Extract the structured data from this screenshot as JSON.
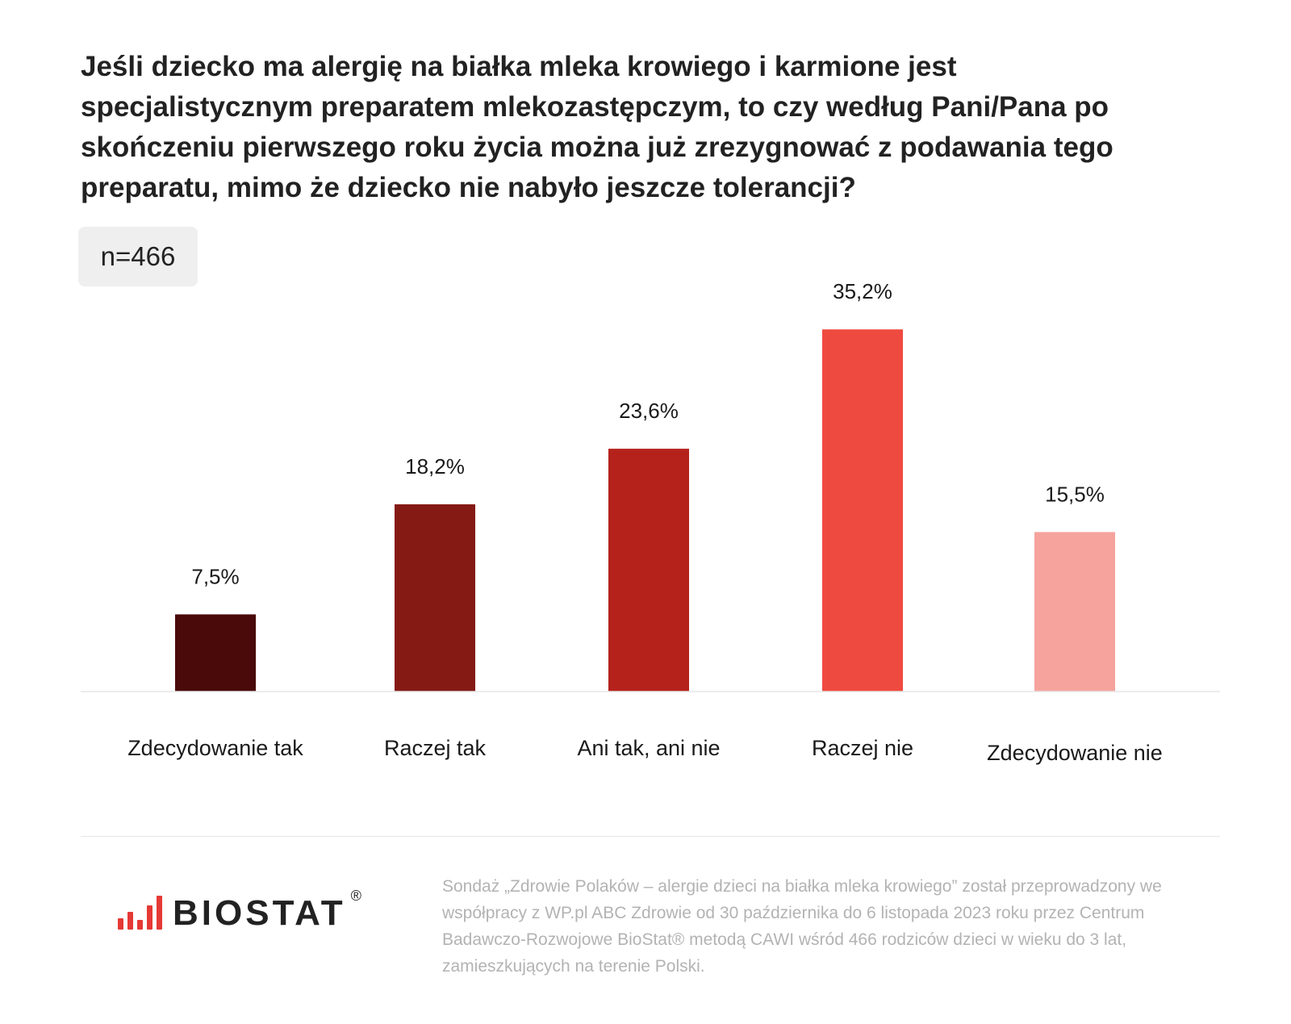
{
  "title": "Jeśli dziecko ma alergię na białka mleka krowiego i karmione jest specjalistycznym preparatem mlekozastępczym, to czy według Pani/Pana po skończeniu pierwszego roku życia można już zrezygnować z podawania tego preparatu, mimo że dziecko nie nabyło jeszcze tolerancji?",
  "sample_size": "n=466",
  "chart_data": {
    "type": "bar",
    "categories": [
      "Zdecydowanie tak",
      "Raczej tak",
      "Ani tak, ani nie",
      "Raczej nie",
      "Zdecydowanie nie"
    ],
    "values": [
      7.5,
      18.2,
      23.6,
      35.2,
      15.5
    ],
    "value_labels": [
      "7,5%",
      "18,2%",
      "23,6%",
      "35,2%",
      "15,5%"
    ],
    "colors": [
      "#4a0a0a",
      "#851a15",
      "#b5221c",
      "#ef4a40",
      "#f5a39c"
    ],
    "xlabel": "",
    "ylabel": "",
    "grid": false
  },
  "logo": {
    "text": "BIOSTAT",
    "registered": "®",
    "color": "#e53935"
  },
  "footnote": "Sondaż „Zdrowie Polaków – alergie dzieci na białka mleka krowiego” został przeprowadzony we współpracy z WP.pl ABC Zdrowie od 30 października do 6 listopada 2023 roku przez Centrum Badawczo-Rozwojowe BioStat® metodą CAWI wśród 466 rodziców dzieci w wieku do 3 lat, zamieszkujących na terenie Polski."
}
